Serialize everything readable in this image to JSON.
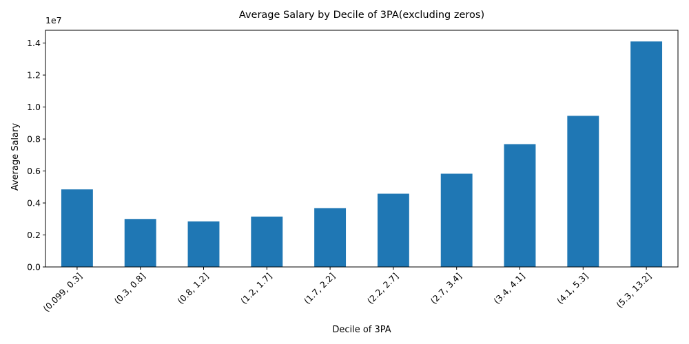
{
  "chart_data": {
    "type": "bar",
    "title": "Average Salary by Decile of 3PA(excluding zeros)",
    "xlabel": "Decile of 3PA",
    "ylabel": "Average Salary",
    "y_offset_label": "1e7",
    "categories": [
      "(0.099, 0.3]",
      "(0.3, 0.8]",
      "(0.8, 1.2]",
      "(1.2, 1.7]",
      "(1.7, 2.2]",
      "(2.2, 2.7]",
      "(2.7, 3.4]",
      "(3.4, 4.1]",
      "(4.1, 5.3]",
      "(5.3, 13.2]"
    ],
    "values": [
      4850000,
      3000000,
      2850000,
      3150000,
      3680000,
      4580000,
      5830000,
      7680000,
      9450000,
      14100000
    ],
    "ylim": [
      0,
      14800000
    ],
    "yticks": [
      0,
      2000000,
      4000000,
      6000000,
      8000000,
      10000000,
      12000000,
      14000000
    ],
    "ytick_labels": [
      "0.0",
      "0.2",
      "0.4",
      "0.6",
      "0.8",
      "1.0",
      "1.2",
      "1.4"
    ],
    "bar_color": "#1f77b4",
    "grid": false,
    "legend": "none"
  }
}
